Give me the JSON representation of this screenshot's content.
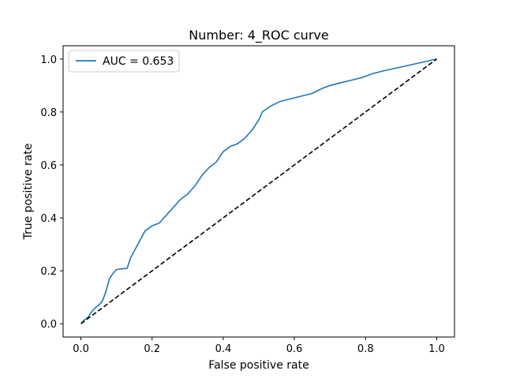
{
  "chart_data": {
    "type": "line",
    "title": "Number: 4_ROC curve",
    "xlabel": "False positive rate",
    "ylabel": "True positive rate",
    "xlim": [
      -0.05,
      1.05
    ],
    "ylim": [
      -0.05,
      1.05
    ],
    "xticks": [
      "0.0",
      "0.2",
      "0.4",
      "0.6",
      "0.8",
      "1.0"
    ],
    "yticks": [
      "0.0",
      "0.2",
      "0.4",
      "0.6",
      "0.8",
      "1.0"
    ],
    "grid": false,
    "legend_position": "upper-left",
    "series": [
      {
        "name": "AUC = 0.653",
        "color": "#1f77b4",
        "style": "solid",
        "x": [
          0.0,
          0.01,
          0.02,
          0.03,
          0.04,
          0.05,
          0.06,
          0.07,
          0.08,
          0.09,
          0.1,
          0.13,
          0.14,
          0.16,
          0.18,
          0.2,
          0.22,
          0.24,
          0.26,
          0.28,
          0.3,
          0.32,
          0.34,
          0.36,
          0.38,
          0.4,
          0.42,
          0.44,
          0.46,
          0.48,
          0.5,
          0.51,
          0.53,
          0.56,
          0.59,
          0.62,
          0.65,
          0.68,
          0.7,
          0.73,
          0.76,
          0.79,
          0.82,
          0.85,
          1.0
        ],
        "y": [
          0.0,
          0.015,
          0.025,
          0.045,
          0.06,
          0.07,
          0.085,
          0.12,
          0.17,
          0.19,
          0.205,
          0.21,
          0.25,
          0.3,
          0.35,
          0.37,
          0.38,
          0.41,
          0.44,
          0.47,
          0.49,
          0.52,
          0.56,
          0.59,
          0.61,
          0.65,
          0.67,
          0.68,
          0.7,
          0.73,
          0.77,
          0.8,
          0.82,
          0.84,
          0.85,
          0.86,
          0.87,
          0.89,
          0.9,
          0.91,
          0.92,
          0.93,
          0.945,
          0.955,
          1.0
        ]
      },
      {
        "name": "",
        "color": "#000000",
        "style": "dashed",
        "x": [
          0.0,
          1.0
        ],
        "y": [
          0.0,
          1.0
        ]
      }
    ]
  }
}
